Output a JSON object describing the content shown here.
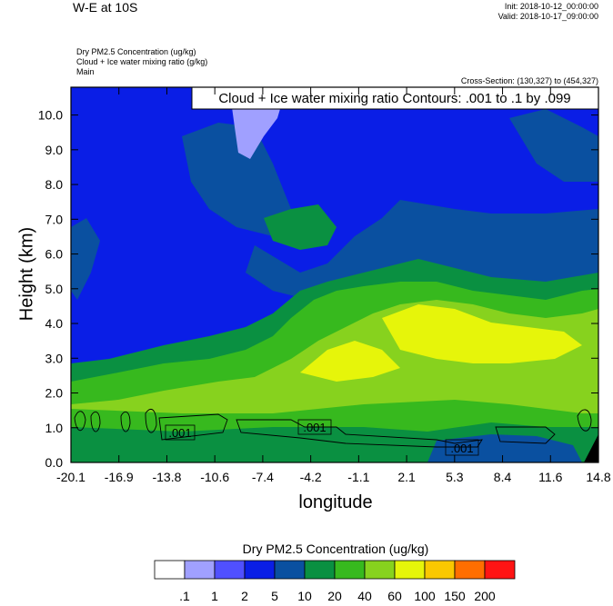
{
  "header": {
    "title": "W-E at 10S",
    "init": "Init: 2018-10-12_00:00:00",
    "valid": "Valid: 2018-10-17_09:00:00",
    "field_lines": [
      "Dry PM2.5 Concentration   (ug/kg)",
      "Cloud + Ice water mixing ratio   (g/kg)",
      "Main"
    ],
    "cross_section": "Cross-Section: (130,327) to (454,327)"
  },
  "chart_data": {
    "type": "heatmap",
    "title": "W-E at 10S",
    "xlabel": "longitude",
    "ylabel": "Height (km)",
    "xlim": [
      -20.1,
      14.8
    ],
    "ylim": [
      0.0,
      10.8
    ],
    "x_ticks": [
      "-20.1",
      "-16.9",
      "-13.8",
      "-10.6",
      "-7.4",
      "-4.2",
      "-1.1",
      "2.1",
      "5.3",
      "8.4",
      "11.6",
      "14.8"
    ],
    "y_ticks": [
      "0.0",
      "1.0",
      "2.0",
      "3.0",
      "4.0",
      "5.0",
      "6.0",
      "7.0",
      "8.0",
      "9.0",
      "10.0"
    ],
    "contour_annotation": "Cloud + Ice water mixing ratio Contours: .001 to .1 by .099",
    "contour_labels": [
      ".001",
      ".001",
      ".001"
    ],
    "colorbar": {
      "title": "Dry PM2.5 Concentration  (ug/kg)",
      "labels": [
        ".1",
        "1",
        "2",
        "5",
        "10",
        "20",
        "40",
        "60",
        "100",
        "150",
        "200"
      ],
      "colors": [
        "#ffffff",
        "#a0a0ff",
        "#5050ff",
        "#0a1ee6",
        "#0a50a0",
        "#0a9041",
        "#37b91e",
        "#87d21e",
        "#e6f50a",
        "#fac800",
        "#ff6e00",
        "#ff1414"
      ]
    }
  }
}
